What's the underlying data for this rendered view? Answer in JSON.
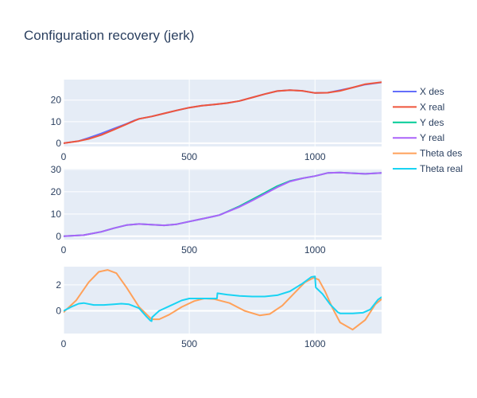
{
  "chart_data": {
    "type": "line",
    "title": "Configuration recovery (jerk)",
    "legend_position": "right",
    "colors": {
      "plot_bg": "#E5ECF6",
      "grid": "#ffffff",
      "text": "#2a3f5f"
    },
    "series": [
      {
        "name": "X des",
        "color": "#636EFA",
        "subplot": 0
      },
      {
        "name": "X real",
        "color": "#EF553B",
        "subplot": 0
      },
      {
        "name": "Y des",
        "color": "#00CC96",
        "subplot": 1
      },
      {
        "name": "Y real",
        "color": "#AB63FA",
        "subplot": 1
      },
      {
        "name": "Theta des",
        "color": "#FFA15A",
        "subplot": 2
      },
      {
        "name": "Theta real",
        "color": "#19D3F3",
        "subplot": 2
      }
    ],
    "subplots": [
      {
        "xlim": [
          0,
          1265
        ],
        "ylim": [
          -1.5,
          29.5
        ],
        "xticks": [
          0,
          500,
          1000
        ],
        "yticks": [
          0,
          10,
          20
        ],
        "lines": [
          {
            "series": "X des",
            "x": [
              0,
              60,
              100,
              150,
              200,
              250,
              280,
              300,
              350,
              400,
              450,
              500,
              550,
              600,
              650,
              700,
              750,
              800,
              850,
              900,
              950,
              1000,
              1050,
              1100,
              1150,
              1200,
              1265
            ],
            "y": [
              0,
              1.0,
              2.5,
              4.5,
              6.8,
              9.0,
              10.5,
              11.3,
              12.4,
              13.8,
              15.2,
              16.5,
              17.4,
              18.0,
              18.6,
              19.6,
              21.2,
              22.8,
              24.2,
              24.6,
              24.3,
              23.3,
              23.4,
              24.6,
              25.8,
              27.2,
              28.2
            ]
          },
          {
            "series": "X real",
            "x": [
              0,
              60,
              100,
              150,
              200,
              250,
              280,
              300,
              350,
              400,
              450,
              500,
              550,
              600,
              650,
              700,
              750,
              800,
              850,
              900,
              950,
              1000,
              1050,
              1100,
              1150,
              1200,
              1265
            ],
            "y": [
              0,
              1.0,
              2.0,
              3.8,
              6.3,
              8.8,
              10.3,
              11.3,
              12.4,
              13.8,
              15.2,
              16.5,
              17.4,
              18.0,
              18.6,
              19.6,
              21.2,
              22.8,
              24.2,
              24.6,
              24.3,
              23.3,
              23.4,
              24.3,
              25.8,
              27.4,
              28.3
            ]
          }
        ]
      },
      {
        "xlim": [
          0,
          1265
        ],
        "ylim": [
          -1.5,
          30.3
        ],
        "xticks": [
          0,
          500,
          1000
        ],
        "yticks": [
          0,
          10,
          20,
          30
        ],
        "lines": [
          {
            "series": "Y des",
            "x": [
              0,
              80,
              150,
              200,
              250,
              300,
              350,
              400,
              450,
              500,
              550,
              600,
              620,
              650,
              700,
              750,
              800,
              850,
              900,
              950,
              1000,
              1050,
              1100,
              1150,
              1200,
              1265
            ],
            "y": [
              0,
              0.5,
              2.0,
              3.6,
              5.0,
              5.5,
              5.2,
              4.9,
              5.4,
              6.6,
              7.8,
              9.0,
              9.5,
              11.0,
              13.5,
              16.5,
              19.5,
              22.5,
              24.8,
              26.0,
              27.0,
              28.4,
              28.6,
              28.3,
              28.0,
              28.4
            ]
          },
          {
            "series": "Y real",
            "x": [
              0,
              80,
              150,
              200,
              250,
              300,
              350,
              400,
              450,
              500,
              550,
              600,
              620,
              650,
              700,
              750,
              800,
              850,
              900,
              950,
              1000,
              1050,
              1100,
              1150,
              1200,
              1265
            ],
            "y": [
              0,
              0.5,
              2.0,
              3.6,
              5.0,
              5.5,
              5.2,
              4.9,
              5.4,
              6.6,
              7.8,
              9.0,
              9.5,
              10.9,
              13.2,
              16.0,
              19.0,
              22.0,
              24.6,
              26.0,
              27.0,
              28.4,
              28.6,
              28.3,
              28.0,
              28.4
            ]
          }
        ]
      },
      {
        "xlim": [
          0,
          1265
        ],
        "ylim": [
          -1.75,
          3.4
        ],
        "xticks": [
          0,
          500,
          1000
        ],
        "yticks": [
          0,
          2
        ],
        "lines": [
          {
            "series": "Theta des",
            "x": [
              0,
              50,
              100,
              140,
              175,
              210,
              250,
              300,
              350,
              380,
              420,
              470,
              520,
              560,
              600,
              660,
              720,
              780,
              820,
              870,
              920,
              960,
              995,
              1015,
              1040,
              1070,
              1100,
              1150,
              1200,
              1240,
              1265
            ],
            "y": [
              -0.1,
              0.8,
              2.2,
              3.0,
              3.15,
              2.9,
              1.8,
              0.3,
              -0.65,
              -0.65,
              -0.3,
              0.3,
              0.75,
              0.95,
              0.9,
              0.6,
              0.0,
              -0.35,
              -0.25,
              0.4,
              1.4,
              2.2,
              2.55,
              2.4,
              1.5,
              0.2,
              -0.9,
              -1.45,
              -0.7,
              0.5,
              0.9
            ]
          },
          {
            "series": "Theta real",
            "x": [
              0,
              30,
              60,
              80,
              120,
              160,
              200,
              230,
              260,
              300,
              330,
              345,
              350,
              352,
              380,
              420,
              470,
              500,
              550,
              600,
              610,
              612,
              650,
              700,
              750,
              800,
              850,
              900,
              950,
              985,
              1000,
              1003,
              1030,
              1060,
              1090,
              1100,
              1150,
              1190,
              1220,
              1250,
              1265
            ],
            "y": [
              0,
              0.3,
              0.55,
              0.6,
              0.45,
              0.45,
              0.5,
              0.55,
              0.5,
              0.2,
              -0.45,
              -0.75,
              -0.8,
              -0.5,
              0.0,
              0.35,
              0.8,
              0.95,
              0.95,
              0.95,
              0.95,
              1.35,
              1.25,
              1.15,
              1.1,
              1.1,
              1.2,
              1.5,
              2.1,
              2.6,
              2.65,
              1.8,
              1.3,
              0.5,
              -0.1,
              -0.2,
              -0.2,
              -0.15,
              0.1,
              0.85,
              1.05
            ]
          }
        ]
      }
    ]
  }
}
